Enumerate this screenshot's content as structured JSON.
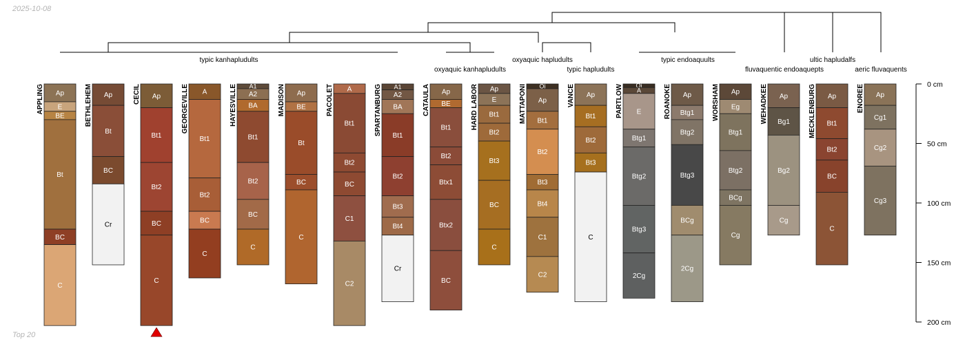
{
  "header": {
    "date": "2025-10-08"
  },
  "footer": {
    "caption": "Top 20"
  },
  "chart_data": {
    "type": "soil-profile-sketch",
    "depth_unit": "cm",
    "depth_axis": {
      "min": 0,
      "max": 200,
      "ticks": [
        0,
        50,
        100,
        150,
        200
      ],
      "labels": [
        "0 cm",
        "50 cm",
        "100 cm",
        "150 cm",
        "200 cm"
      ]
    },
    "taxa_labels": [
      {
        "text": "typic kanhapludults",
        "row": 1
      },
      {
        "text": "oxyaquic kanhapludults",
        "row": 2
      },
      {
        "text": "oxyaquic hapludults",
        "row": 1
      },
      {
        "text": "typic hapludults",
        "row": 2
      },
      {
        "text": "typic endoaquults",
        "row": 1
      },
      {
        "text": "ultic hapludalfs",
        "row": 1
      },
      {
        "text": "fluvaquentic endoaquepts",
        "row": 2
      },
      {
        "text": "aeric fluvaquents",
        "row": 2
      }
    ],
    "profiles": [
      {
        "name": "APPLING",
        "horizons": [
          {
            "name": "Ap",
            "top": 0,
            "bottom": 15,
            "color": "#8c7355"
          },
          {
            "name": "E",
            "top": 15,
            "bottom": 23,
            "color": "#c8a47c"
          },
          {
            "name": "BE",
            "top": 23,
            "bottom": 30,
            "color": "#b78444"
          },
          {
            "name": "Bt",
            "top": 30,
            "bottom": 122,
            "color": "#a0703e"
          },
          {
            "name": "BC",
            "top": 122,
            "bottom": 135,
            "color": "#8e3f25"
          },
          {
            "name": "C",
            "top": 135,
            "bottom": 203,
            "color": "#dba675"
          }
        ]
      },
      {
        "name": "BETHLEHEM",
        "horizons": [
          {
            "name": "Ap",
            "top": 0,
            "bottom": 18,
            "color": "#764b35"
          },
          {
            "name": "Bt",
            "top": 18,
            "bottom": 61,
            "color": "#8a4e38"
          },
          {
            "name": "BC",
            "top": 61,
            "bottom": 84,
            "color": "#7b4a2e"
          },
          {
            "name": "Cr",
            "top": 84,
            "bottom": 152,
            "color": "#f2f2f2"
          }
        ]
      },
      {
        "name": "CECIL",
        "marker": "red-triangle",
        "horizons": [
          {
            "name": "Ap",
            "top": 0,
            "bottom": 20,
            "color": "#7c5c37"
          },
          {
            "name": "Bt1",
            "top": 20,
            "bottom": 66,
            "color": "#a0412f"
          },
          {
            "name": "Bt2",
            "top": 66,
            "bottom": 107,
            "color": "#9d4532"
          },
          {
            "name": "BC",
            "top": 107,
            "bottom": 127,
            "color": "#8e3f25"
          },
          {
            "name": "C",
            "top": 127,
            "bottom": 203,
            "color": "#98472a"
          }
        ]
      },
      {
        "name": "GEORGEVILLE",
        "horizons": [
          {
            "name": "A",
            "top": 0,
            "bottom": 13,
            "color": "#89572a"
          },
          {
            "name": "Bt1",
            "top": 13,
            "bottom": 79,
            "color": "#b5683e"
          },
          {
            "name": "Bt2",
            "top": 79,
            "bottom": 107,
            "color": "#a85e37"
          },
          {
            "name": "BC",
            "top": 107,
            "bottom": 122,
            "color": "#c97a50"
          },
          {
            "name": "C",
            "top": 122,
            "bottom": 163,
            "color": "#933e20"
          }
        ]
      },
      {
        "name": "HAYESVILLE",
        "horizons": [
          {
            "name": "A1",
            "top": 0,
            "bottom": 4,
            "color": "#5e4b3a"
          },
          {
            "name": "A2",
            "top": 4,
            "bottom": 13,
            "color": "#8c6f52"
          },
          {
            "name": "BA",
            "top": 13,
            "bottom": 23,
            "color": "#b06a2e"
          },
          {
            "name": "Bt1",
            "top": 23,
            "bottom": 66,
            "color": "#8e4a30"
          },
          {
            "name": "Bt2",
            "top": 66,
            "bottom": 97,
            "color": "#a7634a"
          },
          {
            "name": "BC",
            "top": 97,
            "bottom": 122,
            "color": "#a26a48"
          },
          {
            "name": "C",
            "top": 122,
            "bottom": 152,
            "color": "#b06a28"
          }
        ]
      },
      {
        "name": "MADISON",
        "horizons": [
          {
            "name": "Ap",
            "top": 0,
            "bottom": 15,
            "color": "#8e6c4e"
          },
          {
            "name": "BE",
            "top": 15,
            "bottom": 23,
            "color": "#b07244"
          },
          {
            "name": "Bt",
            "top": 23,
            "bottom": 76,
            "color": "#9a4c2a"
          },
          {
            "name": "BC",
            "top": 76,
            "bottom": 89,
            "color": "#9c4e2c"
          },
          {
            "name": "C",
            "top": 89,
            "bottom": 168,
            "color": "#b0652f"
          }
        ]
      },
      {
        "name": "PACOLET",
        "horizons": [
          {
            "name": "A",
            "top": 0,
            "bottom": 8,
            "color": "#b06a4a"
          },
          {
            "name": "Bt1",
            "top": 8,
            "bottom": 58,
            "color": "#8a4a34"
          },
          {
            "name": "Bt2",
            "top": 58,
            "bottom": 74,
            "color": "#8e4a32"
          },
          {
            "name": "BC",
            "top": 74,
            "bottom": 94,
            "color": "#8e4a32"
          },
          {
            "name": "C1",
            "top": 94,
            "bottom": 132,
            "color": "#8e5040"
          },
          {
            "name": "C2",
            "top": 132,
            "bottom": 203,
            "color": "#a88a66"
          }
        ]
      },
      {
        "name": "SPARTANBURG",
        "horizons": [
          {
            "name": "A1",
            "top": 0,
            "bottom": 5,
            "color": "#5a4535"
          },
          {
            "name": "A2",
            "top": 5,
            "bottom": 13,
            "color": "#725744"
          },
          {
            "name": "BA",
            "top": 13,
            "bottom": 25,
            "color": "#a17658"
          },
          {
            "name": "Bt1",
            "top": 25,
            "bottom": 61,
            "color": "#8a3c28"
          },
          {
            "name": "Bt2",
            "top": 61,
            "bottom": 94,
            "color": "#8e4030"
          },
          {
            "name": "Bt3",
            "top": 94,
            "bottom": 112,
            "color": "#a06c4e"
          },
          {
            "name": "Bt4",
            "top": 112,
            "bottom": 127,
            "color": "#9e6a48"
          },
          {
            "name": "Cr",
            "top": 127,
            "bottom": 183,
            "color": "#f2f2f2"
          }
        ]
      },
      {
        "name": "CATAULA",
        "horizons": [
          {
            "name": "Ap",
            "top": 0,
            "bottom": 13,
            "color": "#866749"
          },
          {
            "name": "BE",
            "top": 13,
            "bottom": 20,
            "color": "#b06a30"
          },
          {
            "name": "Bt1",
            "top": 20,
            "bottom": 53,
            "color": "#8a4e3c"
          },
          {
            "name": "Bt2",
            "top": 53,
            "bottom": 68,
            "color": "#8b4b38"
          },
          {
            "name": "Btx1",
            "top": 68,
            "bottom": 97,
            "color": "#8d4c36"
          },
          {
            "name": "Btx2",
            "top": 97,
            "bottom": 140,
            "color": "#8a4e3e"
          },
          {
            "name": "BC",
            "top": 140,
            "bottom": 190,
            "color": "#8e4e3c"
          }
        ]
      },
      {
        "name": "HARD LABOR",
        "horizons": [
          {
            "name": "Ap",
            "top": 0,
            "bottom": 8,
            "color": "#6b5544"
          },
          {
            "name": "E",
            "top": 8,
            "bottom": 18,
            "color": "#8c7358"
          },
          {
            "name": "Bt1",
            "top": 18,
            "bottom": 33,
            "color": "#9a6a3e"
          },
          {
            "name": "Bt2",
            "top": 33,
            "bottom": 48,
            "color": "#9e6a3a"
          },
          {
            "name": "Bt3",
            "top": 48,
            "bottom": 81,
            "color": "#a6701e"
          },
          {
            "name": "BC",
            "top": 81,
            "bottom": 122,
            "color": "#a66e22"
          },
          {
            "name": "C",
            "top": 122,
            "bottom": 152,
            "color": "#a8701a"
          }
        ]
      },
      {
        "name": "MATTAPONI",
        "horizons": [
          {
            "name": "Oi",
            "top": 0,
            "bottom": 4,
            "color": "#3e3022"
          },
          {
            "name": "Ap",
            "top": 4,
            "bottom": 23,
            "color": "#7c6048"
          },
          {
            "name": "Bt1",
            "top": 23,
            "bottom": 38,
            "color": "#a36e3e"
          },
          {
            "name": "Bt2",
            "top": 38,
            "bottom": 76,
            "color": "#d48e50"
          },
          {
            "name": "Bt3",
            "top": 76,
            "bottom": 89,
            "color": "#a06c34"
          },
          {
            "name": "Bt4",
            "top": 89,
            "bottom": 112,
            "color": "#b8864a"
          },
          {
            "name": "C1",
            "top": 112,
            "bottom": 145,
            "color": "#9e723e"
          },
          {
            "name": "C2",
            "top": 145,
            "bottom": 175,
            "color": "#b68a52"
          }
        ]
      },
      {
        "name": "VANCE",
        "horizons": [
          {
            "name": "Ap",
            "top": 0,
            "bottom": 18,
            "color": "#8c7358"
          },
          {
            "name": "Bt1",
            "top": 18,
            "bottom": 36,
            "color": "#a66e22"
          },
          {
            "name": "Bt2",
            "top": 36,
            "bottom": 58,
            "color": "#9e6a3a"
          },
          {
            "name": "Bt3",
            "top": 58,
            "bottom": 74,
            "color": "#a6701e"
          },
          {
            "name": "C",
            "top": 74,
            "bottom": 183,
            "color": "#f2f2f2"
          }
        ]
      },
      {
        "name": "PARTLOW",
        "horizons": [
          {
            "name": "Oi",
            "top": 0,
            "bottom": 3,
            "color": "#3a2e22"
          },
          {
            "name": "A",
            "top": 3,
            "bottom": 8,
            "color": "#5a4838"
          },
          {
            "name": "E",
            "top": 8,
            "bottom": 38,
            "color": "#a8968a"
          },
          {
            "name": "Btg1",
            "top": 38,
            "bottom": 53,
            "color": "#7e7670"
          },
          {
            "name": "Btg2",
            "top": 53,
            "bottom": 102,
            "color": "#6b6a68"
          },
          {
            "name": "Btg3",
            "top": 102,
            "bottom": 142,
            "color": "#616463"
          },
          {
            "name": "2Cg",
            "top": 142,
            "bottom": 180,
            "color": "#5e6060"
          }
        ]
      },
      {
        "name": "ROANOKE",
        "horizons": [
          {
            "name": "Ap",
            "top": 0,
            "bottom": 18,
            "color": "#6e5a48"
          },
          {
            "name": "Btg1",
            "top": 18,
            "bottom": 30,
            "color": "#8c7a6c"
          },
          {
            "name": "Btg2",
            "top": 30,
            "bottom": 51,
            "color": "#807466"
          },
          {
            "name": "Btg3",
            "top": 51,
            "bottom": 102,
            "color": "#484848"
          },
          {
            "name": "BCg",
            "top": 102,
            "bottom": 127,
            "color": "#a08c6e"
          },
          {
            "name": "2Cg",
            "top": 127,
            "bottom": 183,
            "color": "#9c9888"
          }
        ]
      },
      {
        "name": "WORSHAM",
        "horizons": [
          {
            "name": "Ap",
            "top": 0,
            "bottom": 13,
            "color": "#5c4838"
          },
          {
            "name": "Eg",
            "top": 13,
            "bottom": 25,
            "color": "#9e8a72"
          },
          {
            "name": "Btg1",
            "top": 25,
            "bottom": 56,
            "color": "#7e735e"
          },
          {
            "name": "Btg2",
            "top": 56,
            "bottom": 89,
            "color": "#7c7064"
          },
          {
            "name": "BCg",
            "top": 89,
            "bottom": 102,
            "color": "#7e7462"
          },
          {
            "name": "Cg",
            "top": 102,
            "bottom": 152,
            "color": "#867a62"
          }
        ]
      },
      {
        "name": "WEHADKEE",
        "horizons": [
          {
            "name": "Ap",
            "top": 0,
            "bottom": 20,
            "color": "#7a6250"
          },
          {
            "name": "Bg1",
            "top": 20,
            "bottom": 43,
            "color": "#5e5446"
          },
          {
            "name": "Bg2",
            "top": 43,
            "bottom": 102,
            "color": "#9c9280"
          },
          {
            "name": "Cg",
            "top": 102,
            "bottom": 127,
            "color": "#a89a8a"
          }
        ]
      },
      {
        "name": "MECKLENBURG",
        "horizons": [
          {
            "name": "Ap",
            "top": 0,
            "bottom": 20,
            "color": "#7a5a44"
          },
          {
            "name": "Bt1",
            "top": 20,
            "bottom": 46,
            "color": "#8e4a30"
          },
          {
            "name": "Bt2",
            "top": 46,
            "bottom": 64,
            "color": "#8a4430"
          },
          {
            "name": "BC",
            "top": 64,
            "bottom": 91,
            "color": "#88432c"
          },
          {
            "name": "C",
            "top": 91,
            "bottom": 152,
            "color": "#8c5436"
          }
        ]
      },
      {
        "name": "ENOREE",
        "horizons": [
          {
            "name": "Ap",
            "top": 0,
            "bottom": 18,
            "color": "#8a7358"
          },
          {
            "name": "Cg1",
            "top": 18,
            "bottom": 38,
            "color": "#7e7260"
          },
          {
            "name": "Cg2",
            "top": 38,
            "bottom": 69,
            "color": "#a89480"
          },
          {
            "name": "Cg3",
            "top": 69,
            "bottom": 127,
            "color": "#7e7260"
          }
        ]
      }
    ]
  }
}
